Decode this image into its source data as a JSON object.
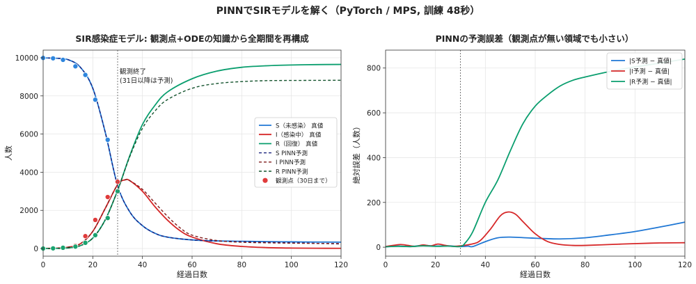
{
  "suptitle": "PINNでSIRモデルを解く（PyTorch / MPS, 訓練 48秒）",
  "colors": {
    "S": "#1f77d4",
    "I": "#d62728",
    "R": "#0a9e6e",
    "S_pinn": "#1a237e",
    "I_pinn": "#7f1d1d",
    "R_pinn": "#14532d",
    "obs_S": "#2e86de",
    "obs_I": "#e03b3b",
    "obs_R": "#1aa36f",
    "grid": "#e6e6e6",
    "vline": "#777777"
  },
  "chart_data": [
    {
      "type": "line",
      "title": "SIR感染症モデル: 観測点+ODEの知識から全期間を再構成",
      "xlabel": "経過日数",
      "ylabel": "人数",
      "xlim": [
        0,
        120
      ],
      "ylim": [
        -400,
        10400
      ],
      "xticks": [
        0,
        20,
        40,
        60,
        80,
        100,
        120
      ],
      "yticks": [
        0,
        2000,
        4000,
        6000,
        8000,
        10000
      ],
      "grid": true,
      "legend_position": "center-right",
      "vline": {
        "x": 30,
        "label_lines": [
          "観測終了",
          "(31日以降は予測)"
        ]
      },
      "series": [
        {
          "name": "S（未感染） 真値",
          "key": "S",
          "style": "solid",
          "x": [
            0,
            5,
            10,
            15,
            20,
            25,
            30,
            35,
            40,
            45,
            50,
            60,
            70,
            80,
            90,
            100,
            110,
            120
          ],
          "y": [
            9990,
            9975,
            9900,
            9500,
            8400,
            6100,
            3300,
            1900,
            1200,
            800,
            600,
            450,
            400,
            380,
            360,
            350,
            340,
            335
          ]
        },
        {
          "name": "I（感染中） 真値",
          "key": "I",
          "style": "solid",
          "x": [
            0,
            5,
            10,
            15,
            20,
            25,
            30,
            33,
            35,
            40,
            45,
            50,
            55,
            60,
            70,
            80,
            90,
            100,
            110,
            120
          ],
          "y": [
            10,
            20,
            70,
            250,
            900,
            2100,
            3350,
            3600,
            3550,
            3000,
            2200,
            1500,
            950,
            600,
            250,
            110,
            50,
            25,
            15,
            10
          ]
        },
        {
          "name": "R（回復） 真値",
          "key": "R",
          "style": "solid",
          "x": [
            0,
            5,
            10,
            15,
            20,
            25,
            30,
            35,
            40,
            45,
            50,
            60,
            70,
            80,
            90,
            100,
            110,
            120
          ],
          "y": [
            0,
            5,
            30,
            150,
            550,
            1500,
            3050,
            4900,
            6500,
            7500,
            8200,
            8900,
            9300,
            9500,
            9580,
            9620,
            9640,
            9650
          ]
        },
        {
          "name": "S PINN予測",
          "key": "S_pinn",
          "style": "dashed",
          "x": [
            0,
            5,
            10,
            15,
            20,
            25,
            30,
            35,
            40,
            45,
            50,
            60,
            70,
            80,
            90,
            100,
            110,
            120
          ],
          "y": [
            9990,
            9975,
            9900,
            9500,
            8400,
            6100,
            3300,
            1900,
            1200,
            800,
            600,
            450,
            390,
            360,
            330,
            300,
            270,
            240
          ]
        },
        {
          "name": "I PINN予測",
          "key": "I_pinn",
          "style": "dashed",
          "x": [
            0,
            5,
            10,
            15,
            20,
            25,
            30,
            33,
            35,
            40,
            45,
            50,
            55,
            60,
            70,
            80,
            90,
            100,
            110,
            120
          ],
          "y": [
            10,
            20,
            70,
            250,
            900,
            2100,
            3350,
            3600,
            3550,
            3100,
            2400,
            1700,
            1100,
            700,
            420,
            330,
            300,
            280,
            270,
            260
          ]
        },
        {
          "name": "R PINN予測",
          "key": "R_pinn",
          "style": "dashed",
          "x": [
            0,
            5,
            10,
            15,
            20,
            25,
            30,
            35,
            40,
            45,
            50,
            60,
            70,
            80,
            90,
            100,
            110,
            120
          ],
          "y": [
            0,
            5,
            30,
            150,
            550,
            1500,
            3050,
            4850,
            6300,
            7200,
            7800,
            8400,
            8650,
            8750,
            8800,
            8810,
            8815,
            8820
          ]
        }
      ],
      "observations": {
        "name": "観測点（30日まで）",
        "x": [
          0,
          4,
          8,
          13,
          17,
          21,
          26,
          30
        ],
        "S": [
          9990,
          9970,
          9890,
          9550,
          9100,
          7800,
          5700,
          3000
        ],
        "I": [
          10,
          20,
          60,
          150,
          650,
          1500,
          2700,
          3500
        ],
        "R": [
          0,
          10,
          40,
          100,
          300,
          700,
          1600,
          3000
        ]
      }
    },
    {
      "type": "line",
      "title": "PINNの予測誤差（観測点が無い領域でも小さい）",
      "xlabel": "経過日数",
      "ylabel": "絶対誤差（人数）",
      "xlim": [
        0,
        120
      ],
      "ylim": [
        -40,
        880
      ],
      "xticks": [
        0,
        20,
        40,
        60,
        80,
        100,
        120
      ],
      "yticks": [
        0,
        200,
        400,
        600,
        800
      ],
      "grid": true,
      "legend_position": "top-right",
      "vline": {
        "x": 30
      },
      "series": [
        {
          "name": "|S予測 − 真値|",
          "key": "S",
          "style": "solid",
          "x": [
            0,
            5,
            10,
            15,
            20,
            25,
            30,
            33,
            35,
            40,
            45,
            50,
            60,
            70,
            80,
            90,
            100,
            110,
            120
          ],
          "y": [
            2,
            5,
            3,
            8,
            5,
            6,
            3,
            5,
            3,
            25,
            42,
            45,
            40,
            37,
            42,
            55,
            70,
            90,
            112
          ]
        },
        {
          "name": "|I予測 − 真値|",
          "key": "I",
          "style": "solid",
          "x": [
            0,
            3,
            6,
            9,
            12,
            15,
            18,
            21,
            24,
            27,
            30,
            35,
            38,
            42,
            46,
            49,
            52,
            55,
            60,
            65,
            70,
            75,
            80,
            90,
            100,
            110,
            120
          ],
          "y": [
            3,
            8,
            12,
            8,
            4,
            10,
            6,
            14,
            8,
            4,
            6,
            15,
            30,
            80,
            140,
            157,
            148,
            115,
            60,
            25,
            12,
            8,
            8,
            12,
            16,
            19,
            20
          ]
        },
        {
          "name": "|R予測 − 真値|",
          "key": "R",
          "style": "solid",
          "x": [
            0,
            5,
            10,
            15,
            20,
            25,
            30,
            32,
            35,
            40,
            45,
            50,
            55,
            60,
            65,
            70,
            75,
            80,
            90,
            100,
            110,
            120
          ],
          "y": [
            2,
            4,
            3,
            6,
            4,
            5,
            3,
            20,
            70,
            200,
            300,
            430,
            550,
            630,
            680,
            720,
            745,
            760,
            785,
            805,
            822,
            840
          ]
        }
      ]
    }
  ]
}
